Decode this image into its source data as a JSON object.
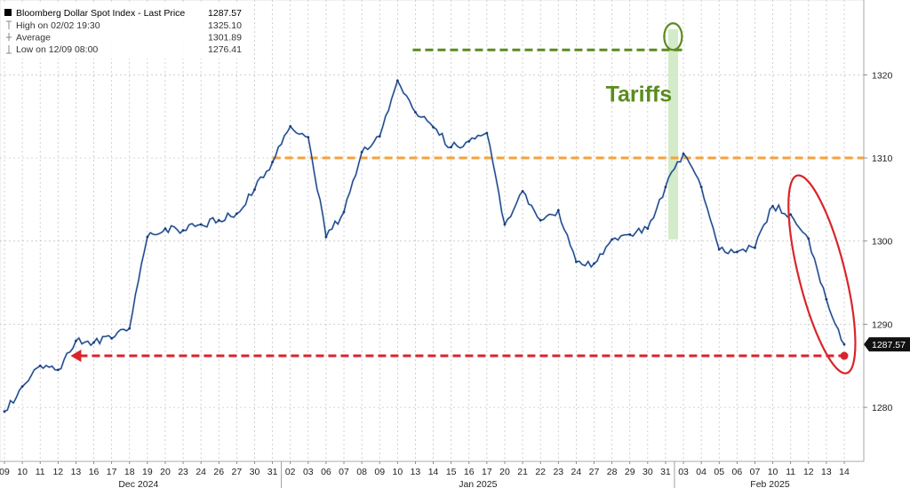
{
  "legend": {
    "series_label": "Bloomberg Dollar Spot Index - Last Price",
    "series_value": "1287.57",
    "high_label": "High on 02/02 19:30",
    "high_value": "1325.10",
    "average_label": "Average",
    "average_value": "1301.89",
    "low_label": "Low on 12/09 08:00",
    "low_value": "1276.41"
  },
  "annotations": {
    "tariffs_text": "Tariffs",
    "last_price_tag": "1287.57"
  },
  "colors": {
    "series_line": "#1a3a78",
    "series_accent": "#3d7fc8",
    "green_annotation": "#5b8c1e",
    "orange_line": "#f4a23a",
    "red_annotation": "#d9242b",
    "highlight_band": "#cde8c0",
    "grid": "#c6c6c6"
  },
  "chart_data": {
    "type": "line",
    "title": "",
    "xlabel": "",
    "ylabel": "",
    "ylim": [
      1273.5,
      1329
    ],
    "y_ticks": [
      1280,
      1290,
      1300,
      1310,
      1320
    ],
    "y_tick_labels": [
      "1280",
      "1290",
      "1300",
      "1310",
      "1320"
    ],
    "grid": true,
    "legend_position": "top-left",
    "x_day_labels": [
      "09",
      "10",
      "11",
      "12",
      "13",
      "16",
      "17",
      "18",
      "19",
      "20",
      "23",
      "24",
      "26",
      "27",
      "30",
      "31",
      "02",
      "03",
      "06",
      "07",
      "08",
      "09",
      "10",
      "13",
      "14",
      "15",
      "16",
      "17",
      "20",
      "21",
      "22",
      "23",
      "24",
      "27",
      "28",
      "29",
      "30",
      "31",
      "03",
      "04",
      "05",
      "06",
      "07",
      "10",
      "11",
      "12",
      "13",
      "14"
    ],
    "x_month_labels": [
      "Dec 2024",
      "Jan 2025",
      "Feb 2025"
    ],
    "series": [
      {
        "name": "Bloomberg Dollar Spot Index - Last Price",
        "x": [
          "12/09",
          "12/10",
          "12/11",
          "12/12",
          "12/13",
          "12/16",
          "12/17",
          "12/18",
          "12/19",
          "12/20",
          "12/23",
          "12/24",
          "12/26",
          "12/27",
          "12/30",
          "12/31",
          "01/02",
          "01/03",
          "01/06",
          "01/07",
          "01/08",
          "01/09",
          "01/10",
          "01/13",
          "01/14",
          "01/15",
          "01/16",
          "01/17",
          "01/20",
          "01/21",
          "01/22",
          "01/23",
          "01/24",
          "01/27",
          "01/28",
          "01/29",
          "01/30",
          "01/31",
          "02/03",
          "02/04",
          "02/05",
          "02/06",
          "02/07",
          "02/10",
          "02/11",
          "02/12",
          "02/13",
          "02/14"
        ],
        "y": [
          1279.5,
          1282.5,
          1285.0,
          1284.5,
          1288.0,
          1287.8,
          1288.3,
          1289.5,
          1300.5,
          1301.5,
          1301.3,
          1302.0,
          1302.5,
          1303.3,
          1306.2,
          1309.5,
          1313.8,
          1312.5,
          1300.5,
          1303.5,
          1310.7,
          1312.6,
          1319.3,
          1315.5,
          1313.7,
          1311.3,
          1312.0,
          1313.0,
          1302.0,
          1306.0,
          1302.5,
          1303.7,
          1297.5,
          1297.3,
          1300.2,
          1300.8,
          1301.5,
          1306.5,
          1310.5,
          1306.5,
          1299.0,
          1298.7,
          1299.2,
          1304.2,
          1303.2,
          1300.3,
          1293.0,
          1287.57
        ]
      }
    ],
    "reference_lines": [
      {
        "value": 1323,
        "label": ""
      },
      {
        "value": 1310,
        "label": ""
      },
      {
        "value": 1286.2,
        "label": ""
      }
    ],
    "annotations": [
      {
        "text": "Tariffs",
        "x": "01/31"
      }
    ]
  }
}
